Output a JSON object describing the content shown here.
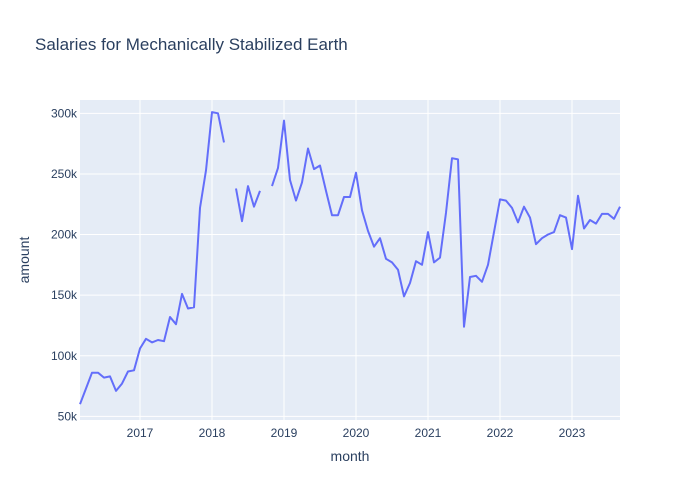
{
  "chart_data": {
    "type": "line",
    "title": "Salaries for Mechanically Stabilized Earth",
    "xlabel": "month",
    "ylabel": "amount",
    "xlim": [
      "2016-03",
      "2023-09"
    ],
    "ylim": [
      47000,
      311000
    ],
    "x_ticks": [
      {
        "date": "2017-01",
        "label": "2017"
      },
      {
        "date": "2018-01",
        "label": "2018"
      },
      {
        "date": "2019-01",
        "label": "2019"
      },
      {
        "date": "2020-01",
        "label": "2020"
      },
      {
        "date": "2021-01",
        "label": "2021"
      },
      {
        "date": "2022-01",
        "label": "2022"
      },
      {
        "date": "2023-01",
        "label": "2023"
      }
    ],
    "y_ticks": [
      {
        "value": 50000,
        "label": "50k"
      },
      {
        "value": 100000,
        "label": "100k"
      },
      {
        "value": 150000,
        "label": "150k"
      },
      {
        "value": 200000,
        "label": "200k"
      },
      {
        "value": 250000,
        "label": "250k"
      },
      {
        "value": 300000,
        "label": "300k"
      }
    ],
    "grid": true,
    "series": [
      {
        "color": "#636efa",
        "points": [
          [
            "2016-03",
            60000
          ],
          [
            "2016-04",
            73000
          ],
          [
            "2016-05",
            86000
          ],
          [
            "2016-06",
            86000
          ],
          [
            "2016-07",
            82000
          ],
          [
            "2016-08",
            83000
          ],
          [
            "2016-09",
            71000
          ],
          [
            "2016-10",
            77000
          ],
          [
            "2016-11",
            87000
          ],
          [
            "2016-12",
            88000
          ],
          [
            "2017-01",
            106000
          ],
          [
            "2017-02",
            114000
          ],
          [
            "2017-03",
            111000
          ],
          [
            "2017-04",
            113000
          ],
          [
            "2017-05",
            112000
          ],
          [
            "2017-06",
            132000
          ],
          [
            "2017-07",
            126000
          ],
          [
            "2017-08",
            151000
          ],
          [
            "2017-09",
            139000
          ],
          [
            "2017-10",
            140000
          ],
          [
            "2017-11",
            222000
          ],
          [
            "2017-12",
            253000
          ],
          [
            "2018-01",
            301000
          ],
          [
            "2018-02",
            300000
          ],
          [
            "2018-03",
            276000
          ],
          [
            "2018-04",
            null
          ],
          [
            "2018-05",
            238000
          ],
          [
            "2018-06",
            211000
          ],
          [
            "2018-07",
            240000
          ],
          [
            "2018-08",
            223000
          ],
          [
            "2018-09",
            236000
          ],
          [
            "2018-10",
            null
          ],
          [
            "2018-11",
            240000
          ],
          [
            "2018-12",
            255000
          ],
          [
            "2019-01",
            294000
          ],
          [
            "2019-02",
            245000
          ],
          [
            "2019-03",
            228000
          ],
          [
            "2019-04",
            243000
          ],
          [
            "2019-05",
            271000
          ],
          [
            "2019-06",
            254000
          ],
          [
            "2019-07",
            257000
          ],
          [
            "2019-08",
            236000
          ],
          [
            "2019-09",
            216000
          ],
          [
            "2019-10",
            216000
          ],
          [
            "2019-11",
            231000
          ],
          [
            "2019-12",
            231000
          ],
          [
            "2020-01",
            251000
          ],
          [
            "2020-02",
            220000
          ],
          [
            "2020-03",
            203000
          ],
          [
            "2020-04",
            190000
          ],
          [
            "2020-05",
            197000
          ],
          [
            "2020-06",
            180000
          ],
          [
            "2020-07",
            177000
          ],
          [
            "2020-08",
            171000
          ],
          [
            "2020-09",
            149000
          ],
          [
            "2020-10",
            160000
          ],
          [
            "2020-11",
            178000
          ],
          [
            "2020-12",
            175000
          ],
          [
            "2021-01",
            202000
          ],
          [
            "2021-02",
            177000
          ],
          [
            "2021-03",
            181000
          ],
          [
            "2021-04",
            218000
          ],
          [
            "2021-05",
            263000
          ],
          [
            "2021-06",
            262000
          ],
          [
            "2021-07",
            124000
          ],
          [
            "2021-08",
            165000
          ],
          [
            "2021-09",
            166000
          ],
          [
            "2021-10",
            161000
          ],
          [
            "2021-11",
            175000
          ],
          [
            "2021-12",
            202000
          ],
          [
            "2022-01",
            229000
          ],
          [
            "2022-02",
            228000
          ],
          [
            "2022-03",
            222000
          ],
          [
            "2022-04",
            210000
          ],
          [
            "2022-05",
            223000
          ],
          [
            "2022-06",
            214000
          ],
          [
            "2022-07",
            192000
          ],
          [
            "2022-08",
            197000
          ],
          [
            "2022-09",
            200000
          ],
          [
            "2022-10",
            202000
          ],
          [
            "2022-11",
            216000
          ],
          [
            "2022-12",
            214000
          ],
          [
            "2023-01",
            188000
          ],
          [
            "2023-02",
            232000
          ],
          [
            "2023-03",
            205000
          ],
          [
            "2023-04",
            212000
          ],
          [
            "2023-05",
            209000
          ],
          [
            "2023-06",
            217000
          ],
          [
            "2023-07",
            217000
          ],
          [
            "2023-08",
            213000
          ],
          [
            "2023-09",
            223000
          ]
        ]
      }
    ]
  }
}
